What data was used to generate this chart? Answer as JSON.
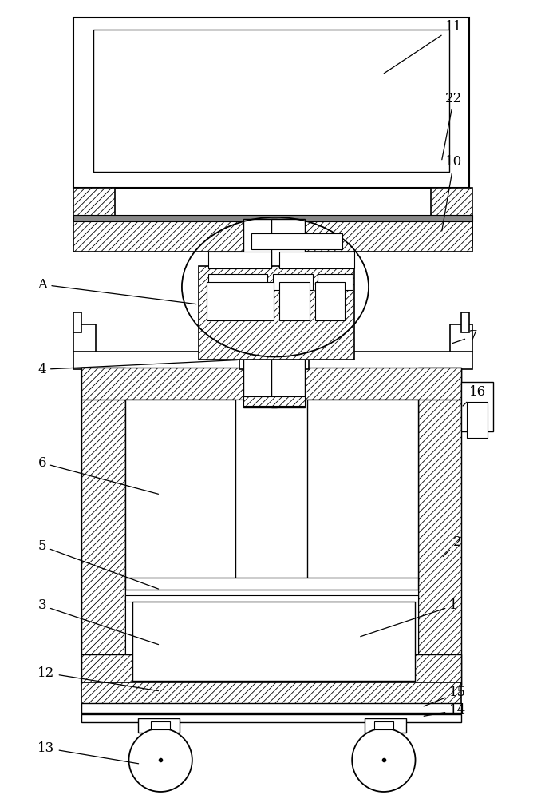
{
  "bg_color": "#ffffff",
  "line_color": "#000000",
  "figsize": [
    6.83,
    10.0
  ],
  "dpi": 100
}
